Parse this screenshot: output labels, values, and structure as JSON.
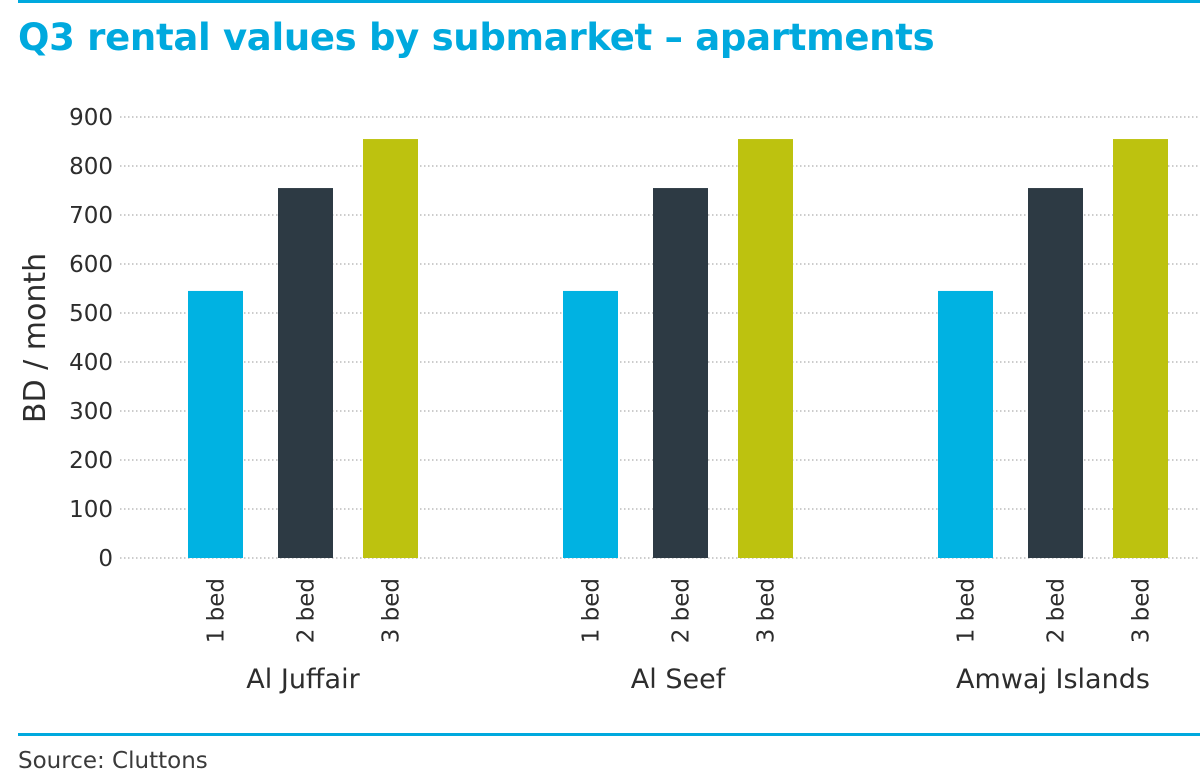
{
  "title": "Q3 rental values by submarket – apartments",
  "source": "Source: Cluttons",
  "colors": {
    "accent": "#00A9DE",
    "one_bed": "#00B2E2",
    "two_bed": "#2D3A44",
    "three_bed": "#BDC20F",
    "text": "#2d2d2d",
    "gridline": "#9a9a9a"
  },
  "chart_data": {
    "type": "bar",
    "title": "Q3 rental values by submarket – apartments",
    "ylabel": "BD / month",
    "xlabel": "",
    "ylim": [
      0,
      900
    ],
    "yticks": [
      "0",
      "100",
      "200",
      "300",
      "400",
      "500",
      "600",
      "700",
      "800",
      "900"
    ],
    "grid": "horizontal dotted",
    "groups": [
      {
        "name": "Al Juffair",
        "bars": [
          {
            "label": "1 bed",
            "value": 545
          },
          {
            "label": "2 bed",
            "value": 755
          },
          {
            "label": "3 bed",
            "value": 855
          }
        ]
      },
      {
        "name": "Al Seef",
        "bars": [
          {
            "label": "1 bed",
            "value": 545
          },
          {
            "label": "2 bed",
            "value": 755
          },
          {
            "label": "3 bed",
            "value": 855
          }
        ]
      },
      {
        "name": "Amwaj Islands",
        "bars": [
          {
            "label": "1 bed",
            "value": 545
          },
          {
            "label": "2 bed",
            "value": 755
          },
          {
            "label": "3 bed",
            "value": 855
          }
        ]
      }
    ]
  }
}
